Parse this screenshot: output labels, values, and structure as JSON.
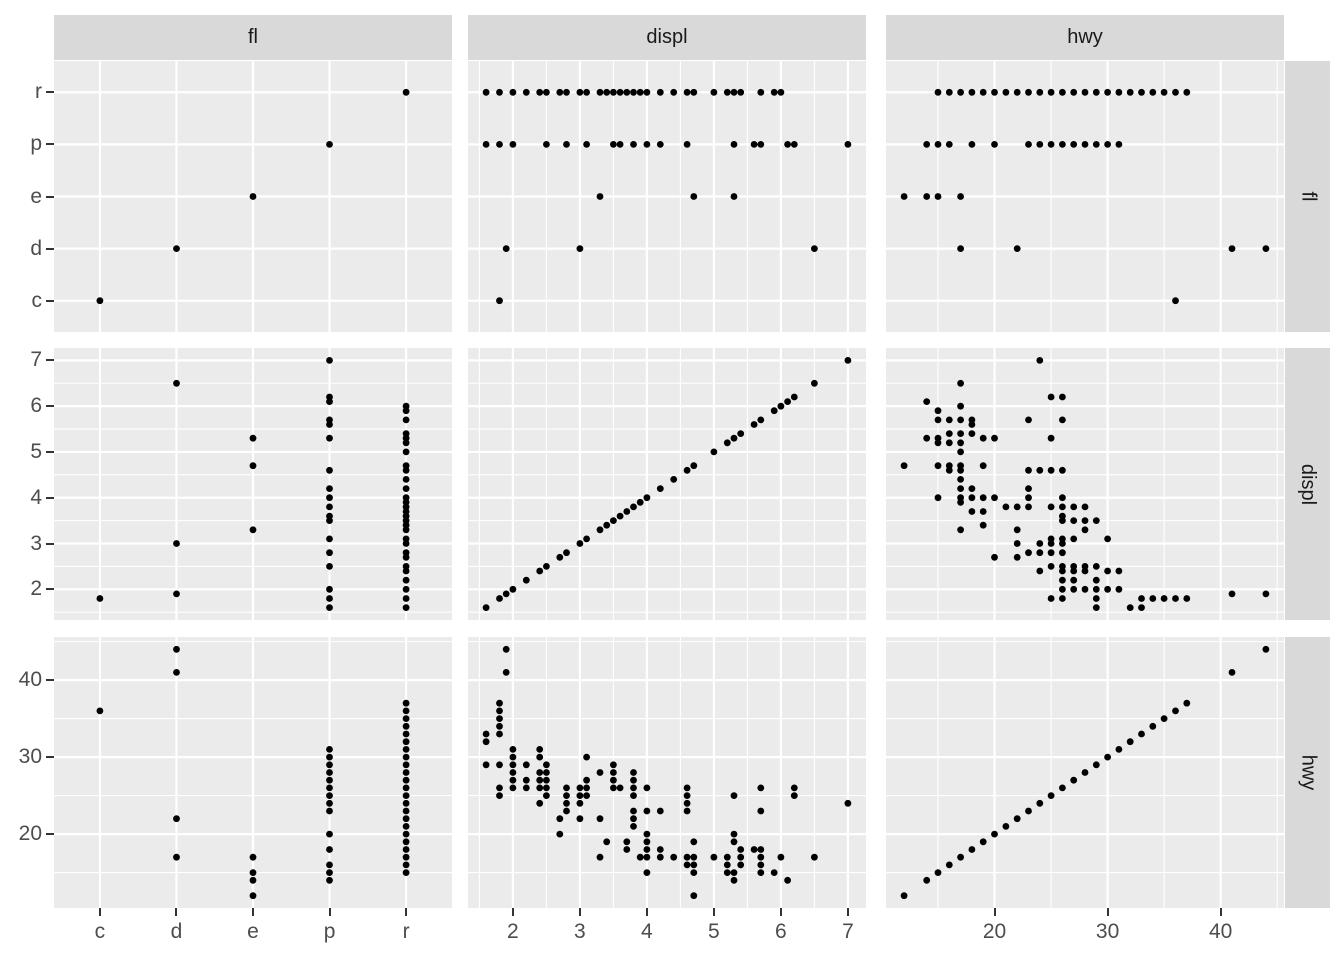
{
  "colors": {
    "background": "#FFFFFF",
    "panel_bg": "#EBEBEB",
    "strip_bg": "#D9D9D9",
    "grid": "#FFFFFF",
    "point": "#000000",
    "axis_text": "#4D4D4D",
    "tick_mark": "#333333",
    "strip_text": "#1A1A1A"
  },
  "strips": {
    "cols": [
      "fl",
      "displ",
      "hwy"
    ],
    "rows": [
      "fl",
      "displ",
      "hwy"
    ]
  },
  "axes": {
    "fl": {
      "type": "discrete",
      "categories": [
        "c",
        "d",
        "e",
        "p",
        "r"
      ]
    },
    "displ": {
      "type": "continuous",
      "domain": [
        1.33,
        7.27
      ],
      "breaks": [
        2,
        3,
        4,
        5,
        6,
        7
      ],
      "minor_breaks": [
        1.5,
        2.5,
        3.5,
        4.5,
        5.5,
        6.5
      ]
    },
    "hwy": {
      "type": "continuous",
      "domain": [
        10.4,
        45.6
      ],
      "breaks": [
        20,
        30,
        40
      ],
      "minor_breaks": [
        15,
        25,
        35,
        45
      ]
    }
  },
  "chart_data": {
    "type": "scatter",
    "subtype": "facet-grid-matrix",
    "title": "",
    "facet_rows": [
      "fl",
      "displ",
      "hwy"
    ],
    "facet_cols": [
      "fl",
      "displ",
      "hwy"
    ],
    "vars": [
      "fl",
      "displ",
      "hwy"
    ],
    "legend": "none",
    "grid": "white major+minor on grey panels",
    "x_tick_labels": {
      "fl": [
        "c",
        "d",
        "e",
        "p",
        "r"
      ],
      "displ": [
        "2",
        "3",
        "4",
        "5",
        "6",
        "7"
      ],
      "hwy": [
        "20",
        "30",
        "40"
      ]
    },
    "y_tick_labels": {
      "fl": [
        "r",
        "p",
        "e",
        "d",
        "c"
      ],
      "displ": [
        "7",
        "6",
        "5",
        "4",
        "3",
        "2"
      ],
      "hwy": [
        "40",
        "30",
        "20"
      ]
    },
    "points": [
      [
        "c",
        1.8,
        36
      ],
      [
        "d",
        1.9,
        44
      ],
      [
        "d",
        1.9,
        41
      ],
      [
        "d",
        3.0,
        22
      ],
      [
        "d",
        6.5,
        17
      ],
      [
        "e",
        3.3,
        17
      ],
      [
        "e",
        4.7,
        12
      ],
      [
        "e",
        5.3,
        15
      ],
      [
        "e",
        5.3,
        14
      ],
      [
        "p",
        1.6,
        29
      ],
      [
        "p",
        1.8,
        29
      ],
      [
        "p",
        1.8,
        26
      ],
      [
        "p",
        1.8,
        25
      ],
      [
        "p",
        2.0,
        31
      ],
      [
        "p",
        2.0,
        30
      ],
      [
        "p",
        2.0,
        29
      ],
      [
        "p",
        2.0,
        28
      ],
      [
        "p",
        2.0,
        27
      ],
      [
        "p",
        2.5,
        26
      ],
      [
        "p",
        2.5,
        25
      ],
      [
        "p",
        2.8,
        26
      ],
      [
        "p",
        2.8,
        25
      ],
      [
        "p",
        2.8,
        24
      ],
      [
        "p",
        3.1,
        27
      ],
      [
        "p",
        3.1,
        25
      ],
      [
        "p",
        3.5,
        27
      ],
      [
        "p",
        3.5,
        26
      ],
      [
        "p",
        3.6,
        26
      ],
      [
        "p",
        3.8,
        28
      ],
      [
        "p",
        4.0,
        20
      ],
      [
        "p",
        4.0,
        15
      ],
      [
        "p",
        4.2,
        23
      ],
      [
        "p",
        4.2,
        18
      ],
      [
        "p",
        4.6,
        16
      ],
      [
        "p",
        5.3,
        25
      ],
      [
        "p",
        5.6,
        18
      ],
      [
        "p",
        5.7,
        26
      ],
      [
        "p",
        5.7,
        23
      ],
      [
        "p",
        5.7,
        18
      ],
      [
        "p",
        6.1,
        14
      ],
      [
        "p",
        6.2,
        26
      ],
      [
        "p",
        6.2,
        25
      ],
      [
        "p",
        7.0,
        24
      ],
      [
        "r",
        1.6,
        33
      ],
      [
        "r",
        1.6,
        32
      ],
      [
        "r",
        1.8,
        37
      ],
      [
        "r",
        1.8,
        36
      ],
      [
        "r",
        1.8,
        35
      ],
      [
        "r",
        1.8,
        34
      ],
      [
        "r",
        1.8,
        33
      ],
      [
        "r",
        2.0,
        29
      ],
      [
        "r",
        2.0,
        28
      ],
      [
        "r",
        2.0,
        27
      ],
      [
        "r",
        2.0,
        26
      ],
      [
        "r",
        2.2,
        29
      ],
      [
        "r",
        2.2,
        27
      ],
      [
        "r",
        2.2,
        26
      ],
      [
        "r",
        2.4,
        31
      ],
      [
        "r",
        2.4,
        30
      ],
      [
        "r",
        2.4,
        28
      ],
      [
        "r",
        2.4,
        27
      ],
      [
        "r",
        2.4,
        26
      ],
      [
        "r",
        2.4,
        24
      ],
      [
        "r",
        2.5,
        29
      ],
      [
        "r",
        2.5,
        28
      ],
      [
        "r",
        2.5,
        27
      ],
      [
        "r",
        2.5,
        26
      ],
      [
        "r",
        2.5,
        25
      ],
      [
        "r",
        2.7,
        22
      ],
      [
        "r",
        2.7,
        20
      ],
      [
        "r",
        2.8,
        25
      ],
      [
        "r",
        2.8,
        24
      ],
      [
        "r",
        2.8,
        23
      ],
      [
        "r",
        3.0,
        26
      ],
      [
        "r",
        3.0,
        25
      ],
      [
        "r",
        3.0,
        24
      ],
      [
        "r",
        3.1,
        30
      ],
      [
        "r",
        3.1,
        27
      ],
      [
        "r",
        3.1,
        26
      ],
      [
        "r",
        3.3,
        28
      ],
      [
        "r",
        3.3,
        22
      ],
      [
        "r",
        3.3,
        17
      ],
      [
        "r",
        3.4,
        19
      ],
      [
        "r",
        3.5,
        29
      ],
      [
        "r",
        3.5,
        28
      ],
      [
        "r",
        3.6,
        26
      ],
      [
        "r",
        3.7,
        19
      ],
      [
        "r",
        3.7,
        18
      ],
      [
        "r",
        3.8,
        28
      ],
      [
        "r",
        3.8,
        27
      ],
      [
        "r",
        3.8,
        26
      ],
      [
        "r",
        3.8,
        25
      ],
      [
        "r",
        3.8,
        23
      ],
      [
        "r",
        3.8,
        22
      ],
      [
        "r",
        3.8,
        21
      ],
      [
        "r",
        3.9,
        17
      ],
      [
        "r",
        4.0,
        26
      ],
      [
        "r",
        4.0,
        23
      ],
      [
        "r",
        4.0,
        20
      ],
      [
        "r",
        4.0,
        19
      ],
      [
        "r",
        4.0,
        18
      ],
      [
        "r",
        4.0,
        17
      ],
      [
        "r",
        4.2,
        17
      ],
      [
        "r",
        4.4,
        17
      ],
      [
        "r",
        4.6,
        26
      ],
      [
        "r",
        4.6,
        25
      ],
      [
        "r",
        4.6,
        24
      ],
      [
        "r",
        4.6,
        23
      ],
      [
        "r",
        4.6,
        17
      ],
      [
        "r",
        4.6,
        16
      ],
      [
        "r",
        4.7,
        19
      ],
      [
        "r",
        4.7,
        17
      ],
      [
        "r",
        4.7,
        16
      ],
      [
        "r",
        4.7,
        15
      ],
      [
        "r",
        5.0,
        17
      ],
      [
        "r",
        5.2,
        17
      ],
      [
        "r",
        5.2,
        16
      ],
      [
        "r",
        5.2,
        15
      ],
      [
        "r",
        5.3,
        20
      ],
      [
        "r",
        5.3,
        19
      ],
      [
        "r",
        5.4,
        18
      ],
      [
        "r",
        5.4,
        17
      ],
      [
        "r",
        5.4,
        16
      ],
      [
        "r",
        5.7,
        18
      ],
      [
        "r",
        5.7,
        17
      ],
      [
        "r",
        5.7,
        16
      ],
      [
        "r",
        5.7,
        15
      ],
      [
        "r",
        5.9,
        15
      ],
      [
        "r",
        6.0,
        17
      ]
    ]
  }
}
